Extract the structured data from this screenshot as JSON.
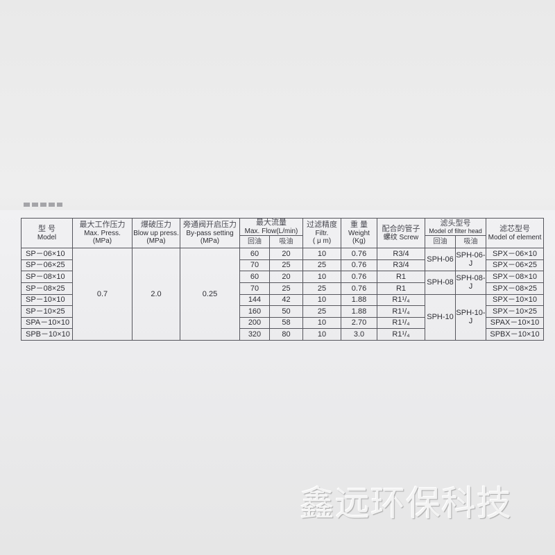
{
  "table": {
    "headers": {
      "model": {
        "zh": "型 号",
        "en": "Model"
      },
      "max_press": {
        "zh": "最大工作压力",
        "en": "Max. Press.",
        "unit": "(MPa)"
      },
      "blow_up": {
        "zh": "爆破压力",
        "en": "Blow up press.",
        "unit": "(MPa)"
      },
      "bypass": {
        "zh": "旁通阀开启压力",
        "en": "By-pass setting",
        "unit": "(MPa)"
      },
      "flow": {
        "zh": "最大流量",
        "en": "Max. Flow(L/min)",
        "sub_return": "回油",
        "sub_suction": "吸油"
      },
      "filtr": {
        "zh": "过滤精度",
        "en": "Filtr.",
        "unit": "( μ m)"
      },
      "weight": {
        "zh": "重 量",
        "en": "Weight",
        "unit": "(Kg)"
      },
      "screw": {
        "zh": "配合的管子",
        "en": "螺纹 Screw"
      },
      "head": {
        "zh": "滤头型号",
        "en": "Model of filter head",
        "sub_return": "回油",
        "sub_suction": "吸油"
      },
      "element": {
        "zh": "滤芯型号",
        "en": "Model of element"
      }
    },
    "shared": {
      "max_press": "0.7",
      "blow_up": "2.0",
      "bypass": "0.25"
    },
    "heads": [
      {
        "return": "SPH-06",
        "suction": "SPH-06-J"
      },
      {
        "return": "SPH-08",
        "suction": "SPH-08-J"
      },
      {
        "return": "SPH-10",
        "suction": "SPH-10-J"
      }
    ],
    "rows": [
      {
        "model": "SP－06×10",
        "flow_return": "60",
        "flow_suction": "20",
        "filtr": "10",
        "weight": "0.76",
        "screw": "R3/4",
        "element": "SPX－06×10"
      },
      {
        "model": "SP－06×25",
        "flow_return": "70",
        "flow_suction": "25",
        "filtr": "25",
        "weight": "0.76",
        "screw": "R3/4",
        "element": "SPX－06×25"
      },
      {
        "model": "SP－08×10",
        "flow_return": "60",
        "flow_suction": "20",
        "filtr": "10",
        "weight": "0.76",
        "screw": "R1",
        "element": "SPX－08×10"
      },
      {
        "model": "SP－08×25",
        "flow_return": "70",
        "flow_suction": "25",
        "filtr": "25",
        "weight": "0.76",
        "screw": "R1",
        "element": "SPX－08×25"
      },
      {
        "model": "SP－10×10",
        "flow_return": "144",
        "flow_suction": "42",
        "filtr": "10",
        "weight": "1.88",
        "screw": "R1¹/₄",
        "element": "SPX－10×10"
      },
      {
        "model": "SP－10×25",
        "flow_return": "160",
        "flow_suction": "50",
        "filtr": "25",
        "weight": "1.88",
        "screw": "R1¹/₄",
        "element": "SPX－10×25"
      },
      {
        "model": "SPA－10×10",
        "flow_return": "200",
        "flow_suction": "58",
        "filtr": "10",
        "weight": "2.70",
        "screw": "R1¹/₄",
        "element": "SPAX－10×10"
      },
      {
        "model": "SPB－10×10",
        "flow_return": "320",
        "flow_suction": "80",
        "filtr": "10",
        "weight": "3.0",
        "screw": "R1¹/₄",
        "element": "SPBX－10×10"
      }
    ]
  },
  "watermark": "鑫远环保科技"
}
